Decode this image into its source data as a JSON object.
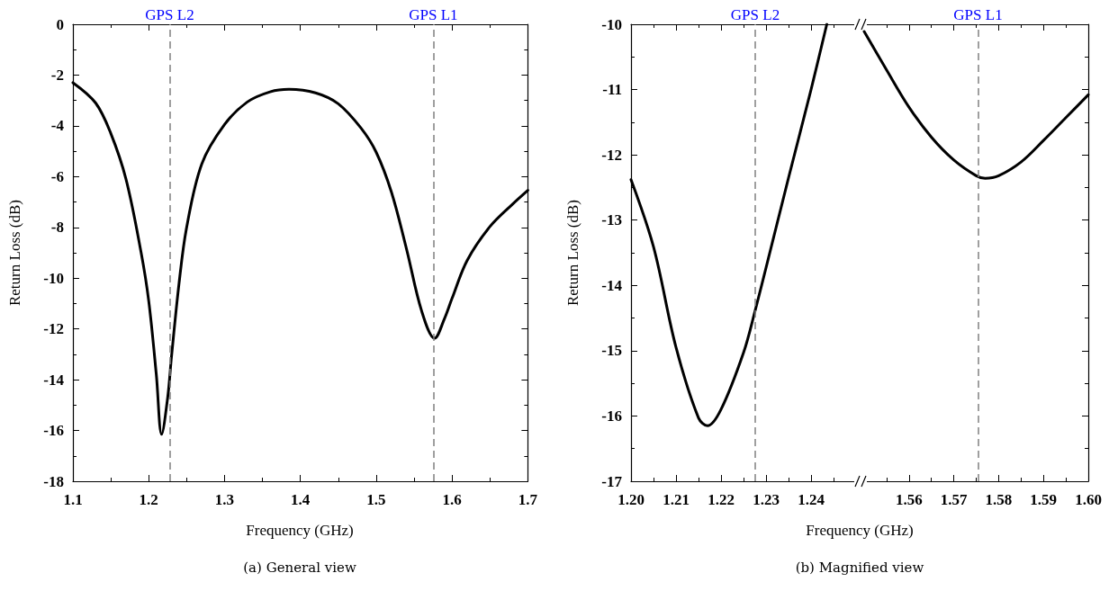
{
  "chart_data": [
    {
      "type": "line",
      "xlabel": "Frequency (GHz)",
      "ylabel": "Return Loss (dB)",
      "annotations": [
        "(a) General view"
      ],
      "x": [
        1.1,
        1.13,
        1.15,
        1.17,
        1.19,
        1.2,
        1.21,
        1.217,
        1.225,
        1.23,
        1.24,
        1.25,
        1.27,
        1.3,
        1.33,
        1.36,
        1.385,
        1.42,
        1.45,
        1.48,
        1.5,
        1.52,
        1.54,
        1.56,
        1.577,
        1.59,
        1.6,
        1.62,
        1.65,
        1.68,
        1.7
      ],
      "values": [
        -2.3,
        -3.1,
        -4.3,
        -6.1,
        -9.0,
        -10.9,
        -13.8,
        -16.15,
        -14.7,
        -13.1,
        -10.2,
        -8.0,
        -5.5,
        -3.95,
        -3.06,
        -2.66,
        -2.56,
        -2.7,
        -3.13,
        -4.09,
        -5.04,
        -6.6,
        -8.85,
        -11.3,
        -12.37,
        -11.6,
        -10.8,
        -9.3,
        -7.97,
        -7.08,
        -6.54
      ],
      "color": "#000000",
      "xlim": [
        1.1,
        1.7
      ],
      "xticks": [
        1.1,
        1.2,
        1.3,
        1.4,
        1.5,
        1.6,
        1.7
      ],
      "ylim": [
        -18,
        0
      ],
      "yticks": [
        -18,
        -16,
        -14,
        -12,
        -10,
        -8,
        -6,
        -4,
        -2,
        0
      ],
      "ref_lines": [
        {
          "axis": "x",
          "value": 1.2276,
          "label": "GPS L2",
          "color": "#808080",
          "line_style": "dashed"
        },
        {
          "axis": "x",
          "value": 1.5754,
          "label": "GPS L1",
          "color": "#808080",
          "line_style": "dashed"
        }
      ],
      "grid": false,
      "marker": "none",
      "line_style": "solid"
    },
    {
      "type": "line",
      "xlabel": "Frequency (GHz)",
      "ylabel": "Return Loss (dB)",
      "annotations": [
        "(b) Magnified view"
      ],
      "x": [
        1.2,
        1.205,
        1.21,
        1.215,
        1.217,
        1.22,
        1.225,
        1.2276,
        1.23,
        1.235,
        1.24,
        1.2435
      ],
      "values": [
        -12.38,
        -13.41,
        -14.95,
        -16.03,
        -16.15,
        -15.9,
        -15.03,
        -14.38,
        -13.73,
        -12.35,
        -11.0,
        -10.0
      ],
      "color": "#000000",
      "xlim": [
        1.2,
        1.25
      ],
      "xticks": [
        {
          "value": 1.2,
          "label": "1.20"
        },
        1.21,
        1.22,
        1.23,
        1.24
      ],
      "ylim": [
        -17,
        -10
      ],
      "yticks": [
        -17,
        -16,
        -15,
        -14,
        -13,
        -12,
        -11,
        -10
      ],
      "ref_lines": [
        {
          "axis": "x",
          "value": 1.2276,
          "label": "GPS L2",
          "color": "#808080",
          "line_style": "dashed"
        }
      ],
      "grid": false,
      "marker": "none",
      "line_style": "solid"
    },
    {
      "type": "line",
      "x": [
        1.55,
        1.555,
        1.56,
        1.565,
        1.57,
        1.575,
        1.577,
        1.58,
        1.585,
        1.59,
        1.595,
        1.6
      ],
      "values": [
        -10.11,
        -10.7,
        -11.27,
        -11.73,
        -12.08,
        -12.32,
        -12.36,
        -12.32,
        -12.11,
        -11.78,
        -11.43,
        -11.08
      ],
      "color": "#000000",
      "xlim": [
        1.55,
        1.6
      ],
      "xticks": [
        1.56,
        1.57,
        1.58,
        1.59,
        {
          "value": 1.6,
          "label": "1.60"
        }
      ],
      "ylim": [
        -17,
        -10
      ],
      "yticks": [
        -17,
        -16,
        -15,
        -14,
        -13,
        -12,
        -11,
        -10
      ],
      "tick_labels": "x",
      "ref_lines": [
        {
          "axis": "x",
          "value": 1.5754,
          "label": "GPS L1",
          "color": "#808080",
          "line_style": "dashed"
        }
      ],
      "grid": false,
      "marker": "none",
      "line_style": "solid"
    }
  ]
}
